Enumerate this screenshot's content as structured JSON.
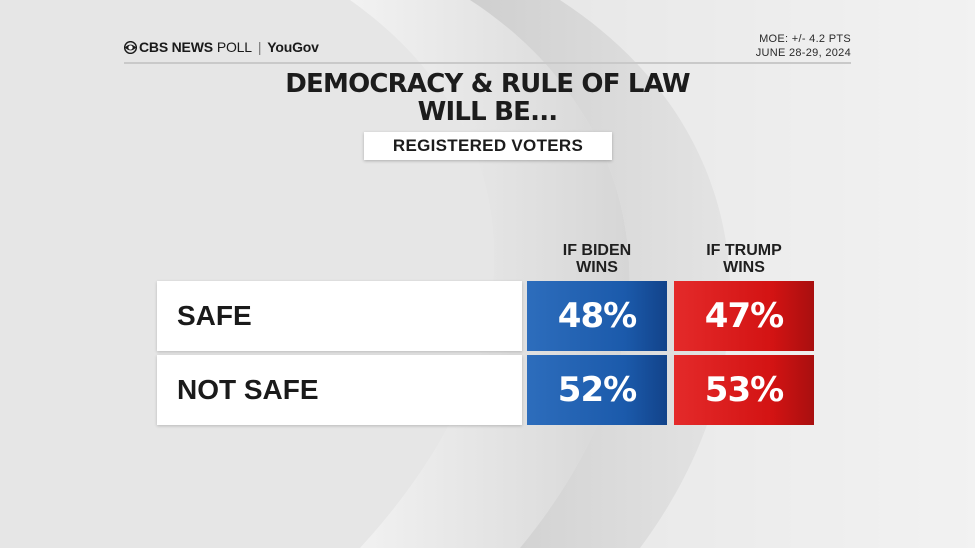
{
  "header": {
    "brand_primary": "CBS NEWS",
    "brand_secondary": "POLL",
    "brand_separator": "|",
    "partner": "YouGov",
    "moe": "MOE: +/- 4.2 PTS",
    "dates": "JUNE 28-29, 2024"
  },
  "icons": {
    "brand_logo": "cbs-eye-icon"
  },
  "colors": {
    "biden": "#1b5aab",
    "trump": "#d31313",
    "background": "#e7e7e7"
  },
  "chart_data": {
    "type": "table",
    "title_line1": "DEMOCRACY & RULE OF LAW",
    "title_line2": "WILL BE...",
    "subtitle": "REGISTERED VOTERS",
    "columns": [
      {
        "line1": "IF BIDEN",
        "line2": "WINS"
      },
      {
        "line1": "IF TRUMP",
        "line2": "WINS"
      }
    ],
    "rows": [
      {
        "label": "SAFE",
        "values": [
          "48%",
          "47%"
        ]
      },
      {
        "label": "NOT SAFE",
        "values": [
          "52%",
          "53%"
        ]
      }
    ],
    "series": [
      {
        "name": "IF BIDEN WINS",
        "values": [
          48,
          52
        ]
      },
      {
        "name": "IF TRUMP WINS",
        "values": [
          47,
          53
        ]
      }
    ],
    "categories": [
      "SAFE",
      "NOT SAFE"
    ]
  }
}
